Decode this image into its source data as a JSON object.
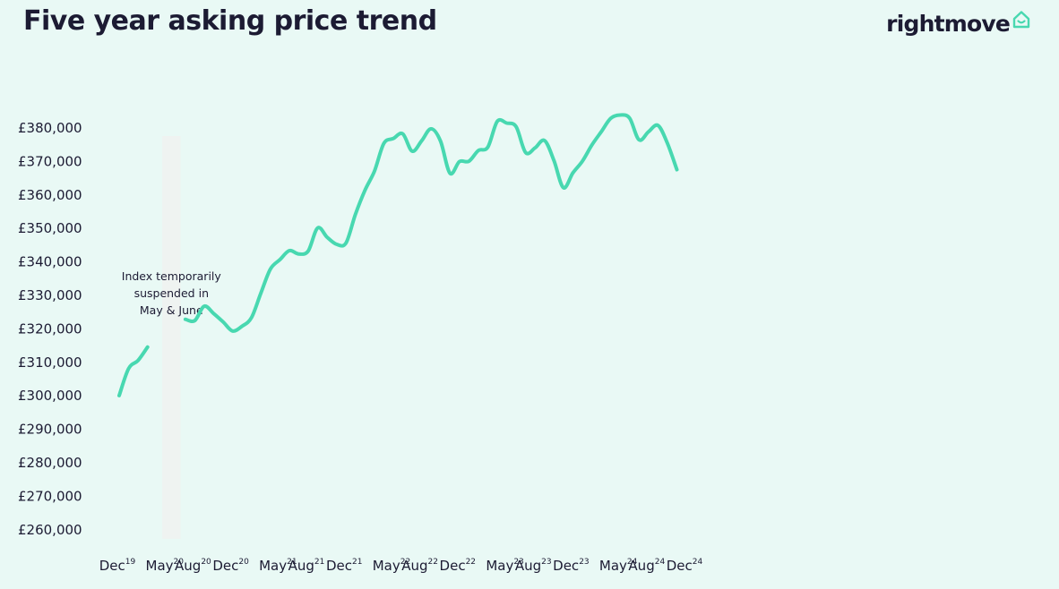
{
  "header": {
    "title": "Five year asking price trend",
    "logo_text": "rightmove",
    "logo_icon": "house-outline-icon"
  },
  "colors": {
    "background": "#e9f9f5",
    "line": "#48d8b0",
    "text": "#1c1b33",
    "suspended_band": "#eff3f1"
  },
  "chart_data": {
    "type": "line",
    "title": "Five year asking price trend",
    "xlabel": "",
    "ylabel": "",
    "ylim": [
      255000,
      385000
    ],
    "y_ticks": [
      "£380,000",
      "£370,000",
      "£360,000",
      "£350,000",
      "£340,000",
      "£330,000",
      "£320,000",
      "£310,000",
      "£300,000",
      "£290,000",
      "£280,000",
      "£270,000",
      "£260,000"
    ],
    "y_tick_values": [
      380000,
      370000,
      360000,
      350000,
      340000,
      330000,
      320000,
      310000,
      300000,
      290000,
      280000,
      270000,
      260000
    ],
    "x_ticks": [
      {
        "month": "Dec",
        "year": "19"
      },
      {
        "month": "May",
        "year": "20"
      },
      {
        "month": "Aug",
        "year": "20"
      },
      {
        "month": "Dec",
        "year": "20"
      },
      {
        "month": "May",
        "year": "21"
      },
      {
        "month": "Aug",
        "year": "21"
      },
      {
        "month": "Dec",
        "year": "21"
      },
      {
        "month": "May",
        "year": "22"
      },
      {
        "month": "Aug",
        "year": "22"
      },
      {
        "month": "Dec",
        "year": "22"
      },
      {
        "month": "May",
        "year": "23"
      },
      {
        "month": "Aug",
        "year": "23"
      },
      {
        "month": "Dec",
        "year": "23"
      },
      {
        "month": "May",
        "year": "24"
      },
      {
        "month": "Aug",
        "year": "24"
      },
      {
        "month": "Dec",
        "year": "24"
      }
    ],
    "grid": false,
    "legend": "none",
    "annotation": {
      "lines": [
        "Index temporarily",
        "suspended in",
        "May & June"
      ],
      "period": [
        "May 2020",
        "Jun 2020"
      ]
    },
    "series": [
      {
        "segments": [
          [
            {
              "x": "Dec 2019",
              "y": 299800
            },
            {
              "x": "Jan 2020",
              "y": 307900
            },
            {
              "x": "Feb 2020",
              "y": 310300
            },
            {
              "x": "Mar 2020",
              "y": 314300
            }
          ],
          [
            {
              "x": "Jul 2020",
              "y": 322600
            },
            {
              "x": "Aug 2020",
              "y": 322200
            },
            {
              "x": "Sep 2020",
              "y": 326500
            },
            {
              "x": "Oct 2020",
              "y": 324300
            },
            {
              "x": "Nov 2020",
              "y": 321800
            },
            {
              "x": "Dec 2020",
              "y": 319100
            },
            {
              "x": "Jan 2021",
              "y": 320500
            },
            {
              "x": "Feb 2021",
              "y": 323100
            },
            {
              "x": "Mar 2021",
              "y": 330500
            },
            {
              "x": "Apr 2021",
              "y": 337600
            },
            {
              "x": "May 2021",
              "y": 340400
            },
            {
              "x": "Jun 2021",
              "y": 343100
            },
            {
              "x": "Jul 2021",
              "y": 342100
            },
            {
              "x": "Aug 2021",
              "y": 343000
            },
            {
              "x": "Sep 2021",
              "y": 349900
            },
            {
              "x": "Oct 2021",
              "y": 347100
            },
            {
              "x": "Nov 2021",
              "y": 345000
            },
            {
              "x": "Dec 2021",
              "y": 345400
            },
            {
              "x": "Jan 2022",
              "y": 354000
            },
            {
              "x": "Feb 2022",
              "y": 361100
            },
            {
              "x": "Mar 2022",
              "y": 366800
            },
            {
              "x": "Apr 2022",
              "y": 375100
            },
            {
              "x": "May 2022",
              "y": 376600
            },
            {
              "x": "Jun 2022",
              "y": 378000
            },
            {
              "x": "Jul 2022",
              "y": 372800
            },
            {
              "x": "Aug 2022",
              "y": 375900
            },
            {
              "x": "Sep 2022",
              "y": 379500
            },
            {
              "x": "Oct 2022",
              "y": 375800
            },
            {
              "x": "Nov 2022",
              "y": 366200
            },
            {
              "x": "Dec 2022",
              "y": 369700
            },
            {
              "x": "Jan 2023",
              "y": 369800
            },
            {
              "x": "Feb 2023",
              "y": 373000
            },
            {
              "x": "Mar 2023",
              "y": 374000
            },
            {
              "x": "Apr 2023",
              "y": 381700
            },
            {
              "x": "May 2023",
              "y": 381200
            },
            {
              "x": "Jun 2023",
              "y": 380100
            },
            {
              "x": "Jul 2023",
              "y": 372400
            },
            {
              "x": "Aug 2023",
              "y": 373800
            },
            {
              "x": "Sep 2023",
              "y": 376000
            },
            {
              "x": "Oct 2023",
              "y": 370000
            },
            {
              "x": "Nov 2023",
              "y": 361900
            },
            {
              "x": "Dec 2023",
              "y": 366300
            },
            {
              "x": "Jan 2024",
              "y": 369800
            },
            {
              "x": "Feb 2024",
              "y": 374600
            },
            {
              "x": "Mar 2024",
              "y": 378600
            },
            {
              "x": "Apr 2024",
              "y": 382600
            },
            {
              "x": "May 2024",
              "y": 383600
            },
            {
              "x": "Jun 2024",
              "y": 382700
            },
            {
              "x": "Jul 2024",
              "y": 376200
            },
            {
              "x": "Aug 2024",
              "y": 378600
            },
            {
              "x": "Sep 2024",
              "y": 380500
            },
            {
              "x": "Oct 2024",
              "y": 375200
            },
            {
              "x": "Nov 2024",
              "y": 367300
            }
          ]
        ]
      }
    ]
  }
}
